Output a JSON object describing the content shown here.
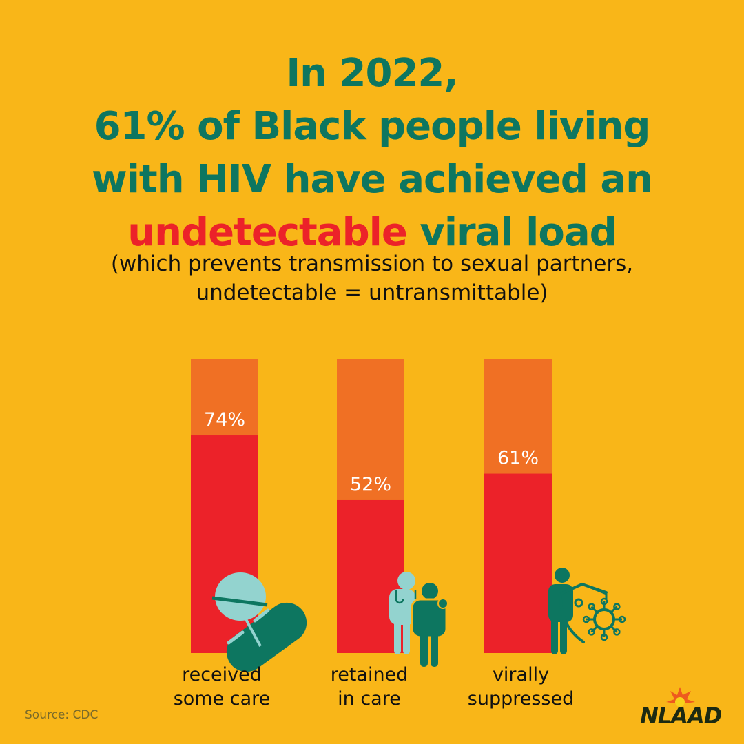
{
  "header": {
    "title_line1": "In 2022,",
    "title_line2": "61% of Black people living",
    "title_line3": "with HIV have achieved an",
    "title_highlight": "undetectable",
    "title_line4_rest": " viral load",
    "subtitle_line1": "(which prevents transmission to sexual partners,",
    "subtitle_line2": "undetectable = untransmittable)"
  },
  "chart_data": {
    "type": "bar",
    "categories": [
      "received some care",
      "retained in care",
      "virally suppressed"
    ],
    "category_lines": [
      [
        "received",
        "some care"
      ],
      [
        "retained",
        "in care"
      ],
      [
        "virally",
        "suppressed"
      ]
    ],
    "values": [
      74,
      52,
      61
    ],
    "data_labels": [
      "74%",
      "52%",
      "61%"
    ],
    "ylim": [
      0,
      100
    ],
    "colors": {
      "value": "#EC2229",
      "remainder": "#F07024"
    },
    "icons": [
      "pills-icon",
      "doctor-patient-icon",
      "person-shield-virus-icon"
    ]
  },
  "footer": {
    "source": "Source: CDC",
    "logo_text": "NLAAD"
  },
  "colors": {
    "background": "#F9B618",
    "green": "#0D7660",
    "red": "#EC2229",
    "orange": "#F07024",
    "teal_light": "#93D3CF"
  }
}
